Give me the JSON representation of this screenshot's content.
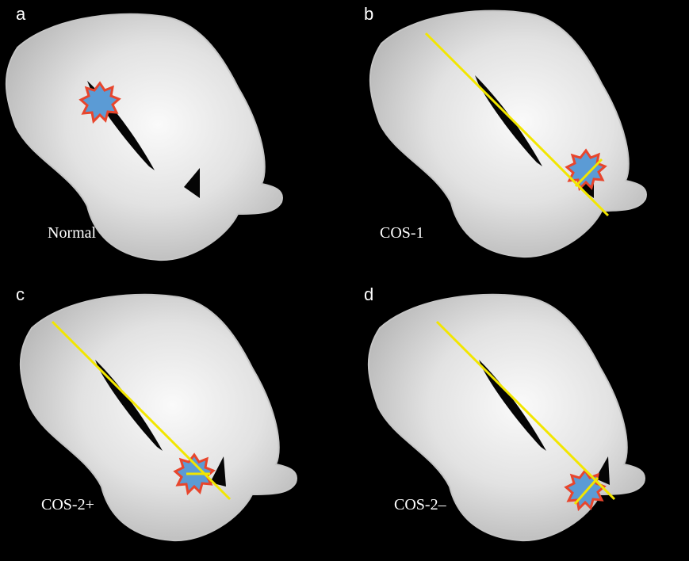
{
  "colors": {
    "background": "#000000",
    "bone": "#d8d8d8",
    "fissure": "#050505",
    "lesion_fill": "#5b9bd5",
    "lesion_border": "#e8452c",
    "line": "#f2e600",
    "label_text": "#ffffff"
  },
  "panels": [
    {
      "letter": "a",
      "caption": "Normal",
      "has_line": false
    },
    {
      "letter": "b",
      "caption": "COS-1",
      "has_line": true
    },
    {
      "letter": "c",
      "caption": "COS-2+",
      "has_line": true
    },
    {
      "letter": "d",
      "caption": "COS-2–",
      "has_line": true
    }
  ]
}
